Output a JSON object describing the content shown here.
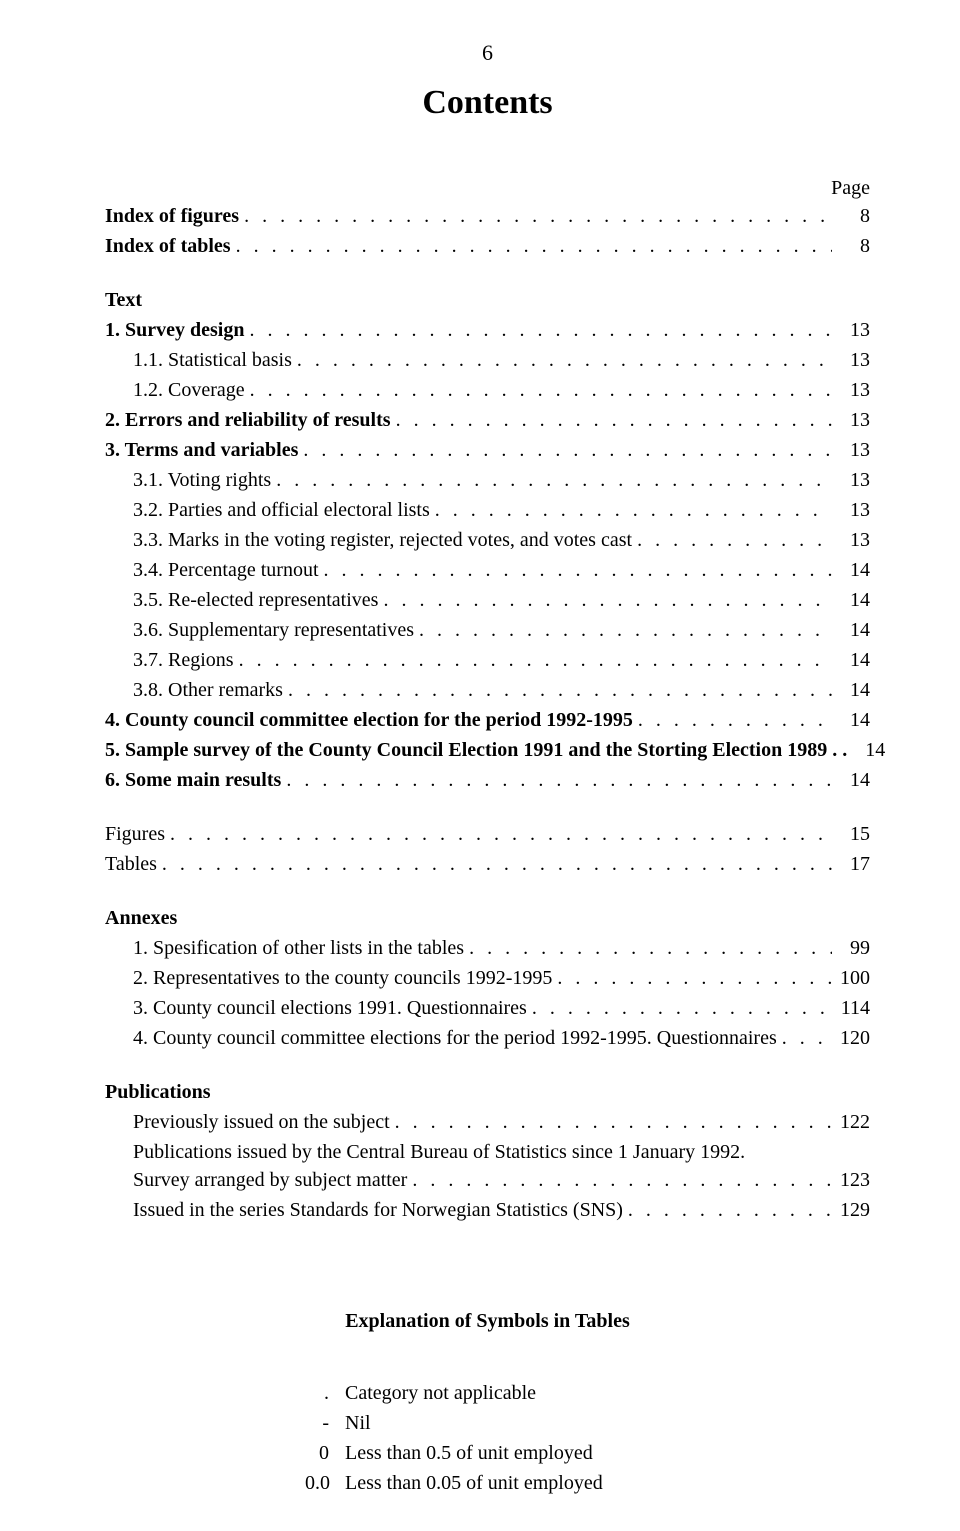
{
  "colors": {
    "background": "#ffffff",
    "text": "#000000"
  },
  "pageNumber": "6",
  "title": "Contents",
  "pageHeaderLabel": "Page",
  "toc": [
    {
      "label": "Index of figures",
      "page": "8",
      "bold": true,
      "indent": 0
    },
    {
      "label": "Index of tables",
      "page": "8",
      "bold": true,
      "indent": 0
    },
    {
      "type": "gap"
    },
    {
      "label": "Text",
      "bold": true,
      "indent": 0,
      "noPage": true
    },
    {
      "label": "1. Survey design",
      "page": "13",
      "bold": true,
      "indent": 0
    },
    {
      "label": "1.1. Statistical basis",
      "page": "13",
      "indent": 1
    },
    {
      "label": "1.2. Coverage",
      "page": "13",
      "indent": 1
    },
    {
      "label": "2. Errors and reliability of results",
      "page": "13",
      "bold": true,
      "indent": 0
    },
    {
      "label": "3. Terms and variables",
      "page": "13",
      "bold": true,
      "indent": 0
    },
    {
      "label": "3.1. Voting rights",
      "page": "13",
      "indent": 1
    },
    {
      "label": "3.2. Parties and official electoral lists",
      "page": "13",
      "indent": 1
    },
    {
      "label": "3.3. Marks in the voting register, rejected votes, and votes cast",
      "page": "13",
      "indent": 1
    },
    {
      "label": "3.4. Percentage turnout",
      "page": "14",
      "indent": 1
    },
    {
      "label": "3.5. Re-elected representatives",
      "page": "14",
      "indent": 1
    },
    {
      "label": "3.6. Supplementary representatives",
      "page": "14",
      "indent": 1
    },
    {
      "label": "3.7. Regions",
      "page": "14",
      "indent": 1
    },
    {
      "label": "3.8. Other remarks",
      "page": "14",
      "indent": 1
    },
    {
      "label": "4. County council committee election for the period 1992-1995",
      "page": "14",
      "bold": true,
      "indent": 0
    },
    {
      "label": "5. Sample survey of the County Council Election 1991 and the Storting Election 1989",
      "suffix": " . .",
      "page": "14",
      "bold": true,
      "indent": 0,
      "noDots": true
    },
    {
      "label": "6. Some main results",
      "page": "14",
      "bold": true,
      "indent": 0
    },
    {
      "type": "gap"
    },
    {
      "label": "Figures",
      "page": "15",
      "indent": 0
    },
    {
      "label": "Tables",
      "page": "17",
      "indent": 0
    },
    {
      "type": "gap"
    },
    {
      "label": "Annexes",
      "bold": true,
      "indent": 0,
      "noPage": true
    },
    {
      "label": "1. Spesification of other lists in the tables",
      "page": "99",
      "indent": 2
    },
    {
      "label": "2. Representatives to the county councils 1992-1995",
      "page": "100",
      "indent": 2
    },
    {
      "label": "3. County council elections 1991. Questionnaires",
      "page": "114",
      "indent": 2
    },
    {
      "label": "4. County council committee elections for the period 1992-1995. Questionnaires",
      "page": "120",
      "indent": 2
    },
    {
      "type": "gap"
    },
    {
      "label": "Publications",
      "bold": true,
      "indent": 0,
      "noPage": true
    },
    {
      "label": "Previously issued on the subject",
      "page": "122",
      "indent": 2
    },
    {
      "type": "pubtext",
      "text": "Publications issued by the Central Bureau of Statistics since 1 January 1992."
    },
    {
      "label": "Survey arranged by subject matter",
      "page": "123",
      "indent": 2
    },
    {
      "label": "Issued in the series Standards for Norwegian Statistics (SNS)",
      "page": "129",
      "indent": 2
    }
  ],
  "symbolsTitle": "Explanation of Symbols in Tables",
  "symbols": [
    {
      "key": ".",
      "val": "Category not applicable"
    },
    {
      "key": "-",
      "val": "Nil"
    },
    {
      "key": "0",
      "val": "Less than 0.5 of unit employed"
    },
    {
      "key": "0.0",
      "val": "Less than 0.05 of unit employed"
    }
  ]
}
